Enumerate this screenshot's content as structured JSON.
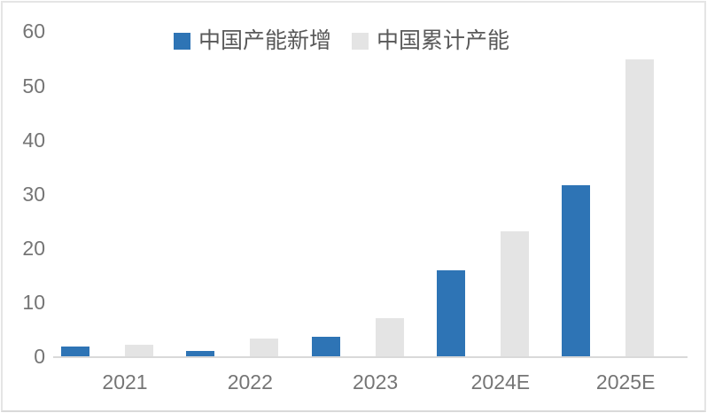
{
  "page": {
    "background": "#ffffff",
    "border_color": "#e5e5e5"
  },
  "legend": {
    "items": [
      {
        "label": "中国产能新增",
        "color": "#2e74b5"
      },
      {
        "label": "中国累计产能",
        "color": "#e4e4e4"
      }
    ]
  },
  "chart_data": {
    "type": "bar",
    "title": "",
    "xlabel": "",
    "ylabel": "",
    "categories": [
      "2021",
      "2022",
      "2023",
      "2024E",
      "2025E"
    ],
    "series": [
      {
        "name": "中国产能新增",
        "color": "#2e74b5",
        "values": [
          2.0,
          1.2,
          3.7,
          16.0,
          31.8
        ]
      },
      {
        "name": "中国累计产能",
        "color": "#e4e4e4",
        "values": [
          2.3,
          3.5,
          7.2,
          23.2,
          55.0
        ]
      }
    ],
    "ylim": [
      0,
      60
    ],
    "yticks": [
      0,
      10,
      20,
      30,
      40,
      50,
      60
    ],
    "grid": false,
    "legend_position": "top",
    "axis_line_color": "#d9d9d9",
    "tick_label_color": "#757575",
    "legend_text_color": "#595959"
  }
}
